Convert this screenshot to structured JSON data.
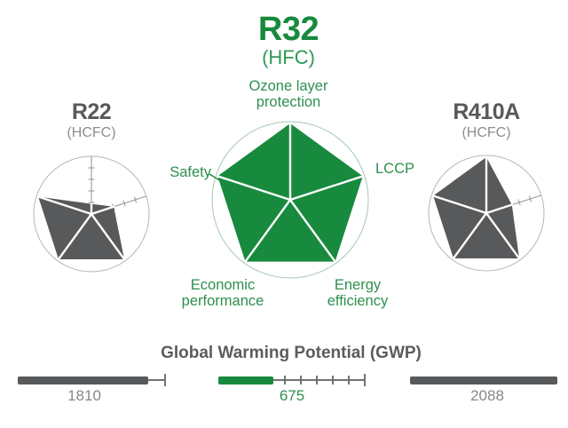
{
  "header": {
    "title": "R32",
    "subtitle": "(HFC)"
  },
  "side_charts": {
    "left": {
      "title": "R22",
      "subtitle": "(HCFC)"
    },
    "right": {
      "title": "R410A",
      "subtitle": "(HCFC)"
    }
  },
  "axis_labels": {
    "ozone": "Ozone layer\nprotection",
    "lccp": "LCCP",
    "energy": "Energy\nefficiency",
    "economic": "Economic\nperformance",
    "safety": "Safety"
  },
  "gwp": {
    "title": "Global Warming Potential (GWP)",
    "r22": "1810",
    "r32": "675",
    "r410a": "2088"
  },
  "colors": {
    "green": "#178a3e",
    "gray": "#58595b",
    "circle_gray": "#b4b6b8",
    "circle_green": "#a5c8b1",
    "axis_gray": "#8f9194"
  },
  "chart_data": [
    {
      "type": "radar",
      "id": "r22",
      "title": "R22 (HCFC)",
      "axes": [
        "Ozone layer protection",
        "LCCP",
        "Energy efficiency",
        "Economic performance",
        "Safety"
      ],
      "values": [
        0.18,
        0.42,
        1.0,
        1.0,
        1.0
      ],
      "max": 1.0,
      "color": "#58595b",
      "grid_ticks": [
        0.2,
        0.4,
        0.6,
        0.8
      ]
    },
    {
      "type": "radar",
      "id": "r32",
      "title": "R32 (HFC)",
      "axes": [
        "Ozone layer protection",
        "LCCP",
        "Energy efficiency",
        "Economic performance",
        "Safety"
      ],
      "values": [
        1.0,
        1.0,
        1.0,
        1.0,
        1.0
      ],
      "max": 1.0,
      "color": "#178a3e",
      "grid_ticks": [
        0.2,
        0.4,
        0.6,
        0.8
      ]
    },
    {
      "type": "radar",
      "id": "r410a",
      "title": "R410A (HCFC)",
      "axes": [
        "Ozone layer protection",
        "LCCP",
        "Energy efficiency",
        "Economic performance",
        "Safety"
      ],
      "values": [
        1.0,
        0.48,
        1.0,
        1.0,
        1.0
      ],
      "max": 1.0,
      "color": "#58595b",
      "grid_ticks": [
        0.2,
        0.4,
        0.6,
        0.8
      ]
    },
    {
      "type": "bar",
      "title": "Global Warming Potential (GWP)",
      "categories": [
        "R22",
        "R32",
        "R410A"
      ],
      "values": [
        1810,
        675,
        2088
      ],
      "colors": [
        "#58595b",
        "#178a3e",
        "#58595b"
      ]
    }
  ]
}
